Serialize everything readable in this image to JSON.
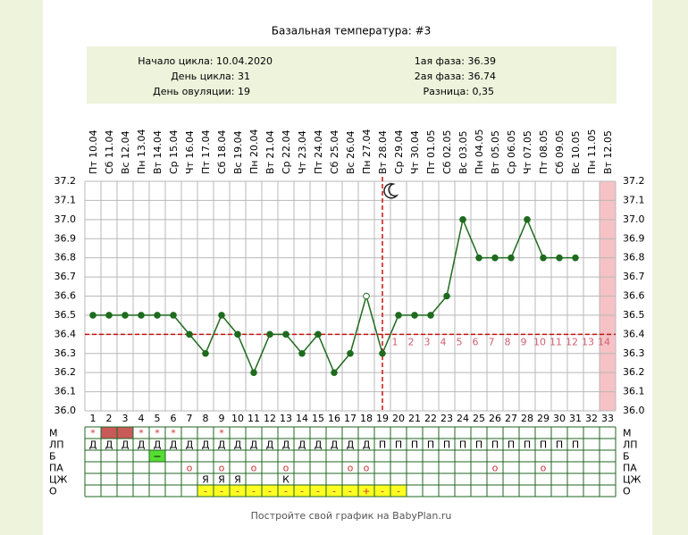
{
  "chart_data": {
    "type": "line",
    "title": "Базальная температура: #3",
    "info": {
      "left": [
        "Начало цикла: 10.04.2020",
        "День цикла: 31",
        "День овуляции: 19"
      ],
      "right": [
        "1ая фаза: 36.39",
        "2ая фаза: 36.74",
        "Разница: 0,35"
      ]
    },
    "x": [
      1,
      2,
      3,
      4,
      5,
      6,
      7,
      8,
      9,
      10,
      11,
      12,
      13,
      14,
      15,
      16,
      17,
      18,
      19,
      20,
      21,
      22,
      23,
      24,
      25,
      26,
      27,
      28,
      29,
      30,
      31,
      32,
      33
    ],
    "categories": [
      "Пт 10.04",
      "Сб 11.04",
      "Вс 12.04",
      "Пн 13.04",
      "Вт 14.04",
      "Ср 15.04",
      "Чт 16.04",
      "Пт 17.04",
      "Сб 18.04",
      "Вс 19.04",
      "Пн 20.04",
      "Вт 21.04",
      "Ср 22.04",
      "Чт 23.04",
      "Пт 24.04",
      "Сб 25.04",
      "Вс 26.04",
      "Пн 27.04",
      "Вт 28.04",
      "Ср 29.04",
      "Чт 30.04",
      "Пт 01.05",
      "Сб 02.05",
      "Вс 03.05",
      "Пн 04.05",
      "Вт 05.05",
      "Ср 06.05",
      "Чт 07.05",
      "Пт 08.05",
      "Сб 09.05",
      "Вс 10.05",
      "Пн 11.05",
      "Вт 12.05"
    ],
    "series": [
      {
        "color": "#1e6b1e",
        "values": [
          36.5,
          36.5,
          36.5,
          36.5,
          36.5,
          36.5,
          36.4,
          36.3,
          36.5,
          36.4,
          36.2,
          36.4,
          36.4,
          36.3,
          36.4,
          36.2,
          36.3,
          36.6,
          36.3,
          36.5,
          36.5,
          36.5,
          36.6,
          37.0,
          36.8,
          36.8,
          36.8,
          37.0,
          36.8,
          36.8,
          36.8,
          null,
          null
        ]
      }
    ],
    "open_points": [
      18
    ],
    "ylim": [
      36.0,
      37.2
    ],
    "yticks": [
      {
        "value": 36.0,
        "label": "36.0"
      },
      36.1,
      36.2,
      36.3,
      36.4,
      36.5,
      36.6,
      36.7,
      36.8,
      36.9,
      {
        "value": 37.0,
        "label": "37.0"
      },
      37.1,
      37.2
    ],
    "grid": true,
    "cover_line": 36.4,
    "cover_color": "#cc1111",
    "ovulation_day": 19,
    "phase2_start_day": 20,
    "phase2_numbers": [
      1,
      2,
      3,
      4,
      5,
      6,
      7,
      8,
      9,
      10,
      11,
      12,
      13,
      14
    ],
    "phase2_color": "#d06070",
    "highlight_day": 33,
    "highlight_color": "#f6c2c6",
    "table": [
      {
        "name": "М",
        "marks": [
          {
            "day": 1,
            "text": "*"
          },
          {
            "day": 4,
            "text": "*"
          },
          {
            "day": 5,
            "text": "*"
          },
          {
            "day": 6,
            "text": "*"
          },
          {
            "day": 9,
            "text": "*"
          }
        ],
        "fill_days": [
          2,
          3
        ],
        "fill_color": "#c85a5a",
        "mark_color": "#cc3333"
      },
      {
        "name": "ЛП",
        "marks": [
          {
            "day": 1,
            "text": "Д"
          },
          {
            "day": 2,
            "text": "Д"
          },
          {
            "day": 3,
            "text": "Д"
          },
          {
            "day": 4,
            "text": "Д"
          },
          {
            "day": 5,
            "text": "Д"
          },
          {
            "day": 6,
            "text": "Д"
          },
          {
            "day": 7,
            "text": "Д"
          },
          {
            "day": 8,
            "text": "Д"
          },
          {
            "day": 9,
            "text": "Д"
          },
          {
            "day": 10,
            "text": "Д"
          },
          {
            "day": 11,
            "text": "Д"
          },
          {
            "day": 12,
            "text": "Д"
          },
          {
            "day": 13,
            "text": "Д"
          },
          {
            "day": 14,
            "text": "Д"
          },
          {
            "day": 15,
            "text": "Д"
          },
          {
            "day": 16,
            "text": "Д"
          },
          {
            "day": 17,
            "text": "Д"
          },
          {
            "day": 18,
            "text": "Д"
          },
          {
            "day": 19,
            "text": "П"
          },
          {
            "day": 20,
            "text": "П"
          },
          {
            "day": 21,
            "text": "П"
          },
          {
            "day": 22,
            "text": "П"
          },
          {
            "day": 23,
            "text": "П"
          },
          {
            "day": 24,
            "text": "П"
          },
          {
            "day": 25,
            "text": "П"
          },
          {
            "day": 26,
            "text": "П"
          },
          {
            "day": 27,
            "text": "П"
          },
          {
            "day": 28,
            "text": "П"
          },
          {
            "day": 29,
            "text": "П"
          },
          {
            "day": 30,
            "text": "П"
          },
          {
            "day": 31,
            "text": "П"
          }
        ],
        "fill_days": [],
        "fill_color": "#ffffff",
        "mark_color": "#000000"
      },
      {
        "name": "Б",
        "marks": [
          {
            "day": 5,
            "text": "−"
          }
        ],
        "fill_days": [
          5
        ],
        "fill_color": "#55dd33",
        "mark_color": "#000000"
      },
      {
        "name": "ПА",
        "marks": [
          {
            "day": 7,
            "text": "o"
          },
          {
            "day": 9,
            "text": "o"
          },
          {
            "day": 11,
            "text": "o"
          },
          {
            "day": 13,
            "text": "o"
          },
          {
            "day": 17,
            "text": "o"
          },
          {
            "day": 18,
            "text": "o"
          },
          {
            "day": 26,
            "text": "o"
          },
          {
            "day": 29,
            "text": "o"
          }
        ],
        "fill_days": [],
        "fill_color": "#ffffff",
        "mark_color": "#cc3333"
      },
      {
        "name": "ЦЖ",
        "marks": [
          {
            "day": 8,
            "text": "Я"
          },
          {
            "day": 9,
            "text": "Я"
          },
          {
            "day": 10,
            "text": "Я"
          },
          {
            "day": 13,
            "text": "К"
          }
        ],
        "fill_days": [],
        "fill_color": "#ffffff",
        "mark_color": "#000000"
      },
      {
        "name": "О",
        "marks": [
          {
            "day": 8,
            "text": "-"
          },
          {
            "day": 9,
            "text": "-"
          },
          {
            "day": 10,
            "text": "-"
          },
          {
            "day": 11,
            "text": "-"
          },
          {
            "day": 12,
            "text": "-"
          },
          {
            "day": 13,
            "text": "-"
          },
          {
            "day": 14,
            "text": "-"
          },
          {
            "day": 15,
            "text": "-"
          },
          {
            "day": 16,
            "text": "-"
          },
          {
            "day": 17,
            "text": "-"
          },
          {
            "day": 18,
            "text": "+"
          },
          {
            "day": 19,
            "text": "-"
          },
          {
            "day": 20,
            "text": "-"
          }
        ],
        "fill_days": [
          8,
          9,
          10,
          11,
          12,
          13,
          14,
          15,
          16,
          17,
          18,
          19,
          20
        ],
        "fill_color": "#ffff22",
        "mark_color": "#cc3333"
      }
    ],
    "footer": "Постройте свой график на BabyPlan.ru"
  }
}
